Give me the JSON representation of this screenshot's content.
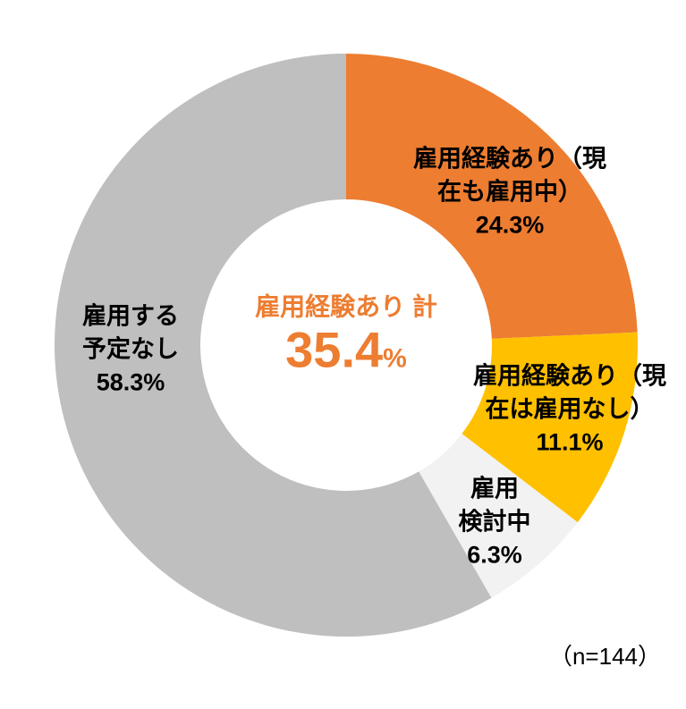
{
  "chart_data": {
    "type": "pie",
    "subtype": "donut",
    "hole_ratio": 0.5,
    "start_angle_deg": 0,
    "direction": "clockwise",
    "background_color": "#FFFFFF",
    "label_text_color": "#000000",
    "accent_color": "#ED7D31",
    "segments": [
      {
        "id": "employed-now",
        "label": "雇用経験あり（現在も雇用中）",
        "value": 24.3,
        "value_text": "24.3%",
        "color": "#ED7D31",
        "label_lines": [
          "雇用経験あり（現",
          "在も雇用中）",
          "24.3%"
        ]
      },
      {
        "id": "employed-past",
        "label": "雇用経験あり（現在は雇用なし）",
        "value": 11.1,
        "value_text": "11.1%",
        "color": "#FFC000",
        "label_lines": [
          "雇用経験あり（現",
          "在は雇用なし）",
          "11.1%"
        ]
      },
      {
        "id": "considering",
        "label": "雇用検討中",
        "value": 6.3,
        "value_text": "6.3%",
        "color": "#F2F2F2",
        "label_lines": [
          "雇用",
          "検討中",
          "6.3%"
        ]
      },
      {
        "id": "no-plan",
        "label": "雇用する予定なし",
        "value": 58.3,
        "value_text": "58.3%",
        "color": "#BFBFBF",
        "label_lines": [
          "雇用する",
          "予定なし",
          "58.3%"
        ]
      }
    ],
    "center_label": {
      "title": "雇用経験あり 計",
      "value": "35.4",
      "unit": "%",
      "color": "#ED7D31"
    },
    "note": "（n=144）"
  }
}
